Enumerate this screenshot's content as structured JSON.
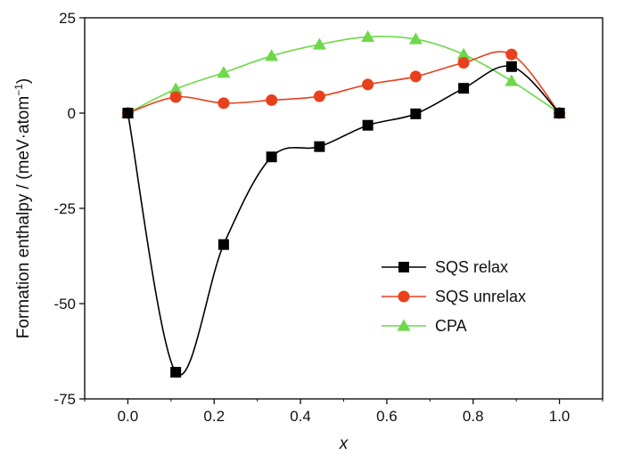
{
  "chart_data": {
    "type": "line",
    "xlabel": "x",
    "ylabel": "Formation enthalpy / (meV·atom",
    "ylabel_sup": "−1",
    "ylabel_close": ")",
    "xlim": [
      -0.1,
      1.1
    ],
    "ylim": [
      -75,
      25
    ],
    "xticks": [
      0.0,
      0.2,
      0.4,
      0.6,
      0.8,
      1.0
    ],
    "xtick_labels": [
      "0.0",
      "0.2",
      "0.4",
      "0.6",
      "0.8",
      "1.0"
    ],
    "yticks": [
      -75,
      -50,
      -25,
      0,
      25
    ],
    "ytick_labels": [
      "-75",
      "-50",
      "-25",
      "0",
      "25"
    ],
    "grid": false,
    "legend_position": "bottom-right",
    "series": [
      {
        "name": "SQS relax",
        "color": "#000000",
        "marker": "square",
        "x": [
          0.0,
          0.111,
          0.222,
          0.333,
          0.444,
          0.556,
          0.667,
          0.778,
          0.889,
          1.0
        ],
        "y": [
          0.0,
          -68.0,
          -34.5,
          -11.5,
          -8.8,
          -3.2,
          -0.2,
          6.5,
          12.2,
          0.0
        ]
      },
      {
        "name": "SQS unrelax",
        "color": "#e8401c",
        "marker": "circle",
        "x": [
          0.0,
          0.111,
          0.222,
          0.333,
          0.444,
          0.556,
          0.667,
          0.778,
          0.889,
          1.0
        ],
        "y": [
          0.0,
          4.2,
          2.6,
          3.4,
          4.4,
          7.5,
          9.6,
          13.2,
          15.4,
          0.0
        ]
      },
      {
        "name": "CPA",
        "color": "#6ed84a",
        "marker": "triangle",
        "x": [
          0.0,
          0.111,
          0.222,
          0.333,
          0.444,
          0.556,
          0.667,
          0.778,
          0.889,
          1.0
        ],
        "y": [
          0.0,
          6.3,
          10.6,
          15.0,
          18.0,
          20.0,
          19.4,
          15.4,
          8.4,
          0.0
        ]
      }
    ]
  }
}
